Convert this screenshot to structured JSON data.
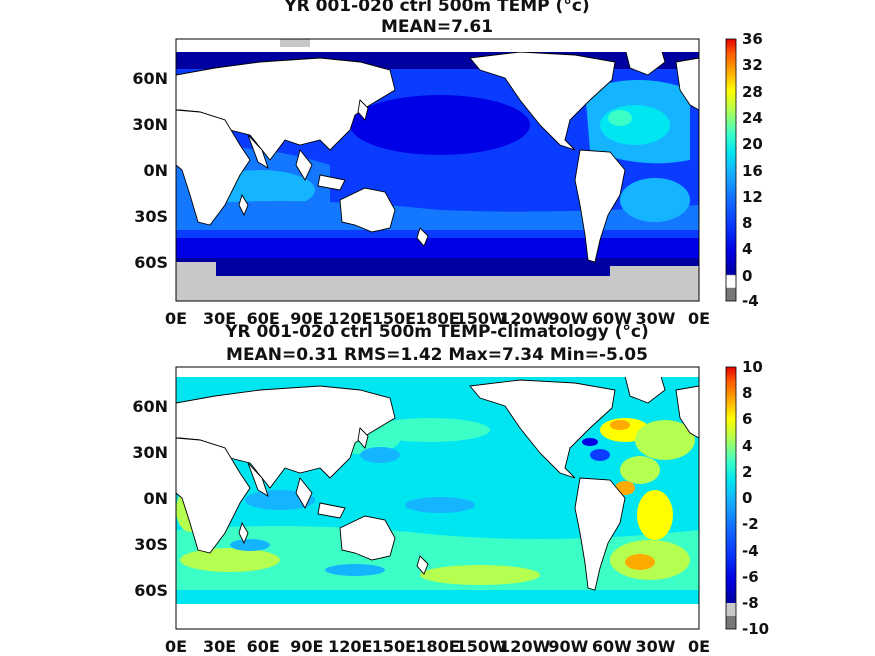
{
  "panels": [
    {
      "title": "YR 001-020 ctrl 500m TEMP (°c)",
      "subtitle": "MEAN=7.61",
      "x_ticks": [
        "0E",
        "30E",
        "60E",
        "90E",
        "120E",
        "150E",
        "180E",
        "150W",
        "120W",
        "90W",
        "60W",
        "30W",
        "0E"
      ],
      "y_ticks": [
        "60N",
        "30N",
        "0N",
        "30S",
        "60S"
      ],
      "colorbar_ticks": [
        "36",
        "32",
        "28",
        "24",
        "20",
        "16",
        "12",
        "8",
        "4",
        "0",
        "-4"
      ],
      "colorbar_range": [
        -4,
        36
      ],
      "palette": [
        "#0000a0",
        "#0000e6",
        "#0a3cff",
        "#1478ff",
        "#14b4ff",
        "#00e6f0",
        "#3cffc8",
        "#b4ff50",
        "#ffff00",
        "#ffaa00",
        "#ff5a00",
        "#e60000"
      ]
    },
    {
      "title": "YR 001-020 ctrl 500m TEMP-climatology (°c)",
      "subtitle": "MEAN=0.31   RMS=1.42   Max=7.34   Min=-5.05",
      "x_ticks": [
        "0E",
        "30E",
        "60E",
        "90E",
        "120E",
        "150E",
        "180E",
        "150W",
        "120W",
        "90W",
        "60W",
        "30W",
        "0E"
      ],
      "y_ticks": [
        "60N",
        "30N",
        "0N",
        "30S",
        "60S"
      ],
      "colorbar_ticks": [
        "10",
        "8",
        "6",
        "4",
        "2",
        "0",
        "-2",
        "-4",
        "-6",
        "-8",
        "-10"
      ],
      "colorbar_range": [
        -10,
        10
      ],
      "palette": [
        "#0000a0",
        "#0000e6",
        "#0a3cff",
        "#1478ff",
        "#14b4ff",
        "#00e6f0",
        "#3cffc8",
        "#b4ff50",
        "#ffff00",
        "#ffaa00",
        "#ff5a00",
        "#e60000"
      ]
    }
  ],
  "colors": {
    "land": "#ffffff",
    "masked": "#c8c8c8",
    "below_min": "#777777",
    "coast": "#000000"
  }
}
